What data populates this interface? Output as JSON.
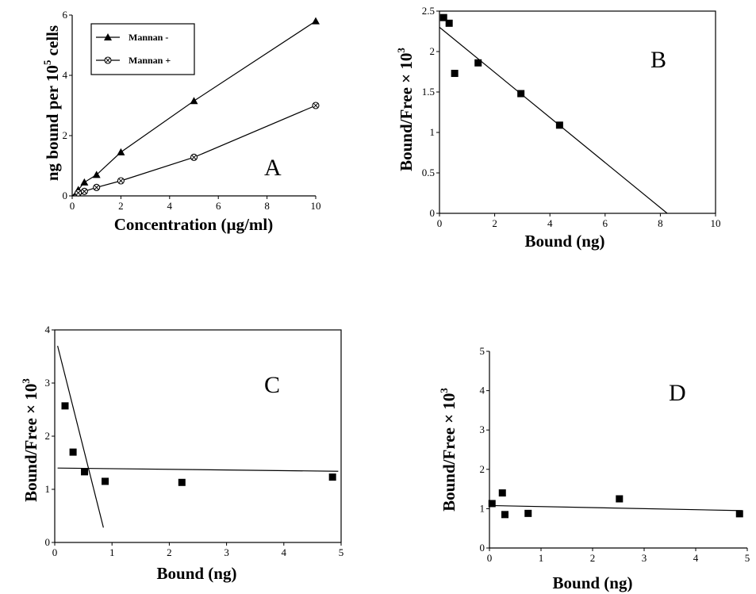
{
  "chart_data": [
    {
      "panel": "A",
      "type": "line",
      "xlabel": "Concentration (µg/ml)",
      "ylabel": "ng bound per 10",
      "ylabel_sup": "5",
      "ylabel_tail": " cells",
      "xlim": [
        0,
        10
      ],
      "ylim": [
        0,
        6
      ],
      "xticks": [
        "0",
        "2",
        "4",
        "6",
        "8",
        "10"
      ],
      "yticks": [
        "0",
        "2",
        "4",
        "6"
      ],
      "legend": "top-left",
      "series": [
        {
          "name": "Mannan -",
          "marker": "triangle",
          "x": [
            0,
            0.25,
            0.5,
            1,
            2,
            5,
            10
          ],
          "y": [
            0,
            0.2,
            0.45,
            0.7,
            1.45,
            3.15,
            5.8
          ]
        },
        {
          "name": "Mannan +",
          "marker": "circle-x",
          "x": [
            0,
            0.25,
            0.5,
            1,
            2,
            5,
            10
          ],
          "y": [
            0,
            0.1,
            0.15,
            0.28,
            0.5,
            1.28,
            3.0
          ]
        }
      ]
    },
    {
      "panel": "B",
      "type": "scatter",
      "xlabel": "Bound (ng)",
      "ylabel": "Bound/Free × 10",
      "ylabel_sup": "3",
      "xlim": [
        0,
        10
      ],
      "ylim": [
        0,
        2.5
      ],
      "xticks": [
        "0",
        "2",
        "4",
        "6",
        "8",
        "10"
      ],
      "yticks": [
        "0",
        "0.5",
        "1",
        "1.5",
        "2",
        "2.5"
      ],
      "points": {
        "x": [
          0.15,
          0.35,
          0.55,
          1.4,
          2.95,
          4.35
        ],
        "y": [
          2.42,
          2.35,
          1.73,
          1.86,
          1.48,
          1.09
        ]
      },
      "fit_lines": [
        {
          "x": [
            0,
            8.25
          ],
          "y": [
            2.3,
            0
          ]
        }
      ]
    },
    {
      "panel": "C",
      "type": "scatter",
      "xlabel": "Bound (ng)",
      "ylabel": "Bound/Free × 10",
      "ylabel_sup": "3",
      "xlim": [
        0,
        5
      ],
      "ylim": [
        0,
        4
      ],
      "xticks": [
        "0",
        "1",
        "2",
        "3",
        "4",
        "5"
      ],
      "yticks": [
        "0",
        "1",
        "2",
        "3",
        "4"
      ],
      "points": {
        "x": [
          0.18,
          0.32,
          0.52,
          0.88,
          2.22,
          4.85
        ],
        "y": [
          2.57,
          1.7,
          1.33,
          1.15,
          1.13,
          1.23
        ]
      },
      "fit_lines": [
        {
          "x": [
            0.05,
            0.85
          ],
          "y": [
            3.7,
            0.28
          ]
        },
        {
          "x": [
            0.05,
            4.95
          ],
          "y": [
            1.4,
            1.34
          ]
        }
      ]
    },
    {
      "panel": "D",
      "type": "scatter",
      "xlabel": "Bound (ng)",
      "ylabel": "Bound/Free × 10",
      "ylabel_sup": "3",
      "xlim": [
        0,
        5
      ],
      "ylim": [
        0,
        5
      ],
      "xticks": [
        "0",
        "1",
        "2",
        "3",
        "4",
        "5"
      ],
      "yticks": [
        "0",
        "1",
        "2",
        "3",
        "4",
        "5"
      ],
      "points": {
        "x": [
          0.05,
          0.25,
          0.3,
          0.75,
          2.52,
          4.85
        ],
        "y": [
          1.13,
          1.4,
          0.85,
          0.88,
          1.25,
          0.87
        ]
      },
      "fit_lines": [
        {
          "x": [
            0,
            4.9
          ],
          "y": [
            1.08,
            0.95
          ]
        }
      ]
    }
  ]
}
